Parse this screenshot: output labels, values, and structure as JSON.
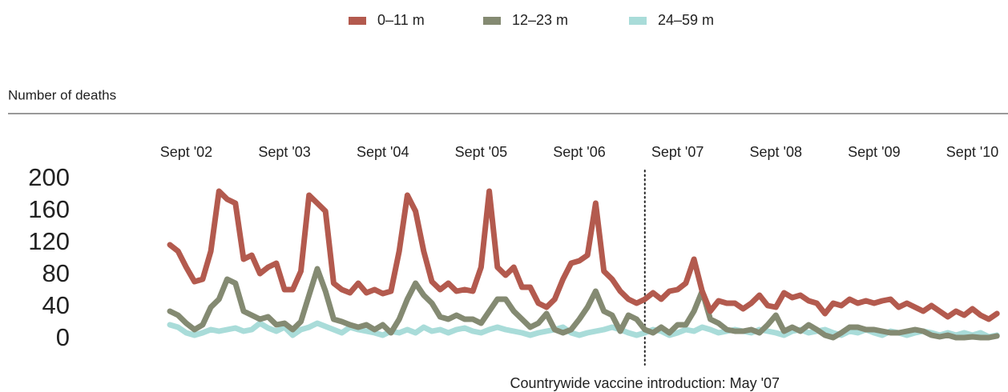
{
  "chart_data": {
    "type": "line",
    "y_label": "Number of deaths",
    "categories": [
      null,
      null,
      "Sept '02",
      null,
      null,
      null,
      null,
      null,
      null,
      null,
      null,
      null,
      null,
      null,
      "Sept '03",
      null,
      null,
      null,
      null,
      null,
      null,
      null,
      null,
      null,
      null,
      null,
      "Sept '04",
      null,
      null,
      null,
      null,
      null,
      null,
      null,
      null,
      null,
      null,
      null,
      "Sept '05",
      null,
      null,
      null,
      null,
      null,
      null,
      null,
      null,
      null,
      null,
      null,
      "Sept '06",
      null,
      null,
      null,
      null,
      null,
      null,
      null,
      null,
      null,
      null,
      null,
      "Sept '07",
      null,
      null,
      null,
      null,
      null,
      null,
      null,
      null,
      null,
      null,
      null,
      "Sept '08",
      null,
      null,
      null,
      null,
      null,
      null,
      null,
      null,
      null,
      null,
      null,
      "Sept '09",
      null,
      null,
      null,
      null,
      null,
      null,
      null,
      null,
      null,
      null,
      null,
      "Sept '10",
      null,
      null,
      null
    ],
    "series": [
      {
        "name": "0–11 m",
        "color": "#b35a4e",
        "values": [
          118,
          110,
          90,
          72,
          75,
          110,
          185,
          175,
          170,
          100,
          105,
          82,
          90,
          95,
          62,
          62,
          85,
          180,
          170,
          160,
          70,
          62,
          58,
          70,
          58,
          62,
          57,
          60,
          110,
          180,
          160,
          110,
          72,
          62,
          70,
          60,
          62,
          60,
          90,
          185,
          90,
          80,
          90,
          65,
          65,
          45,
          40,
          50,
          75,
          95,
          98,
          105,
          170,
          85,
          75,
          60,
          50,
          45,
          50,
          58,
          50,
          60,
          62,
          70,
          100,
          60,
          35,
          48,
          45,
          45,
          38,
          45,
          55,
          42,
          40,
          58,
          52,
          55,
          48,
          45,
          32,
          45,
          42,
          50,
          45,
          48,
          45,
          48,
          50,
          40,
          45,
          40,
          35,
          42,
          35,
          28,
          35,
          30,
          38,
          30,
          25,
          32
        ]
      },
      {
        "name": "12–23 m",
        "color": "#848a72",
        "values": [
          35,
          30,
          20,
          12,
          18,
          40,
          50,
          75,
          70,
          35,
          30,
          25,
          28,
          18,
          20,
          12,
          22,
          55,
          88,
          60,
          25,
          22,
          18,
          15,
          18,
          12,
          18,
          8,
          25,
          50,
          70,
          55,
          45,
          28,
          25,
          30,
          25,
          25,
          20,
          35,
          50,
          50,
          35,
          25,
          15,
          20,
          32,
          12,
          8,
          12,
          25,
          40,
          60,
          35,
          30,
          10,
          30,
          25,
          12,
          8,
          15,
          8,
          18,
          18,
          35,
          60,
          25,
          20,
          12,
          10,
          10,
          12,
          8,
          18,
          30,
          10,
          15,
          10,
          18,
          12,
          5,
          2,
          8,
          15,
          15,
          12,
          12,
          10,
          8,
          8,
          10,
          12,
          10,
          5,
          3,
          5,
          2,
          2,
          3,
          2,
          2,
          4
        ]
      },
      {
        "name": "24–59 m",
        "color": "#a9dcd9",
        "values": [
          18,
          15,
          8,
          5,
          8,
          12,
          10,
          12,
          14,
          10,
          12,
          20,
          14,
          10,
          15,
          5,
          12,
          15,
          20,
          16,
          12,
          8,
          15,
          12,
          10,
          8,
          5,
          10,
          8,
          12,
          8,
          15,
          10,
          12,
          8,
          12,
          14,
          10,
          8,
          12,
          15,
          12,
          10,
          8,
          5,
          8,
          10,
          12,
          15,
          8,
          5,
          8,
          10,
          12,
          15,
          12,
          8,
          5,
          8,
          12,
          10,
          5,
          8,
          12,
          10,
          15,
          12,
          8,
          10,
          12,
          10,
          8,
          12,
          10,
          8,
          5,
          10,
          12,
          8,
          10,
          12,
          8,
          5,
          10,
          8,
          12,
          8,
          5,
          10,
          8,
          5,
          8,
          10,
          8,
          5,
          8,
          5,
          8,
          5,
          8,
          3,
          5
        ]
      }
    ],
    "ylim": [
      0,
      200
    ],
    "yticks": [
      0,
      40,
      80,
      120,
      160,
      200
    ],
    "annotation": {
      "text": "Countrywide vaccine introduction: May '07",
      "category_index": 58
    }
  }
}
